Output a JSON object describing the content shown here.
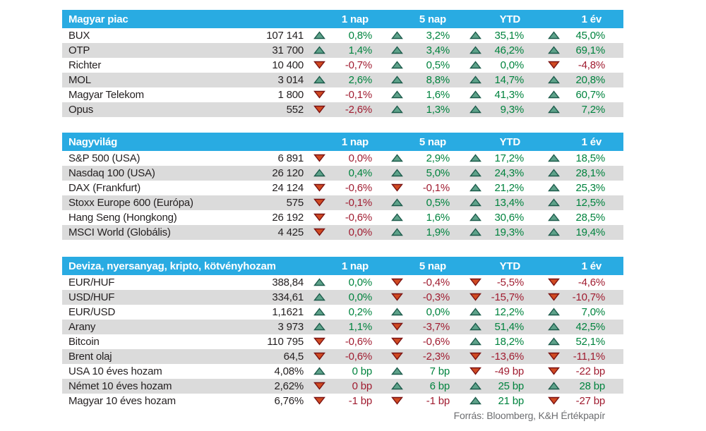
{
  "colors": {
    "header_bg": "#29ABE2",
    "header_text": "#FFFFFF",
    "row_alt_bg": "#DBDBDB",
    "text": "#231F20",
    "positive_text": "#00833E",
    "negative_text": "#A01C30",
    "up_arrow_fill": "#5EA28A",
    "up_arrow_stroke": "#1C5B4B",
    "down_arrow_fill": "#D04A22",
    "down_arrow_stroke": "#7A1212",
    "source_text": "#6D6E71"
  },
  "source_note": "Forrás: Bloomberg, K&H Értékpapír",
  "chart_data": [
    {
      "type": "table",
      "title": "Magyar piac",
      "columns": [
        "1 nap",
        "5 nap",
        "YTD",
        "1 év"
      ],
      "rows": [
        {
          "name": "BUX",
          "value": "107 141",
          "changes": [
            {
              "dir": "up",
              "text": "0,8%"
            },
            {
              "dir": "up",
              "text": "3,2%"
            },
            {
              "dir": "up",
              "text": "35,1%"
            },
            {
              "dir": "up",
              "text": "45,0%"
            }
          ]
        },
        {
          "name": "OTP",
          "value": "31 700",
          "changes": [
            {
              "dir": "up",
              "text": "1,4%"
            },
            {
              "dir": "up",
              "text": "3,4%"
            },
            {
              "dir": "up",
              "text": "46,2%"
            },
            {
              "dir": "up",
              "text": "69,1%"
            }
          ]
        },
        {
          "name": "Richter",
          "value": "10 400",
          "changes": [
            {
              "dir": "down",
              "text": "-0,7%"
            },
            {
              "dir": "up",
              "text": "0,5%"
            },
            {
              "dir": "up",
              "text": "0,0%"
            },
            {
              "dir": "down",
              "text": "-4,8%"
            }
          ]
        },
        {
          "name": "MOL",
          "value": "3 014",
          "changes": [
            {
              "dir": "up",
              "text": "2,6%"
            },
            {
              "dir": "up",
              "text": "8,8%"
            },
            {
              "dir": "up",
              "text": "14,7%"
            },
            {
              "dir": "up",
              "text": "20,8%"
            }
          ]
        },
        {
          "name": "Magyar Telekom",
          "value": "1 800",
          "changes": [
            {
              "dir": "down",
              "text": "-0,1%"
            },
            {
              "dir": "up",
              "text": "1,6%"
            },
            {
              "dir": "up",
              "text": "41,3%"
            },
            {
              "dir": "up",
              "text": "60,7%"
            }
          ]
        },
        {
          "name": "Opus",
          "value": "552",
          "changes": [
            {
              "dir": "down",
              "text": "-2,6%"
            },
            {
              "dir": "up",
              "text": "1,3%"
            },
            {
              "dir": "up",
              "text": "9,3%"
            },
            {
              "dir": "up",
              "text": "7,2%"
            }
          ]
        }
      ]
    },
    {
      "type": "table",
      "title": "Nagyvilág",
      "columns": [
        "1 nap",
        "5 nap",
        "YTD",
        "1 év"
      ],
      "rows": [
        {
          "name": "S&P 500 (USA)",
          "value": "6 891",
          "changes": [
            {
              "dir": "down",
              "text": "0,0%"
            },
            {
              "dir": "up",
              "text": "2,9%"
            },
            {
              "dir": "up",
              "text": "17,2%"
            },
            {
              "dir": "up",
              "text": "18,5%"
            }
          ]
        },
        {
          "name": "Nasdaq 100 (USA)",
          "value": "26 120",
          "changes": [
            {
              "dir": "up",
              "text": "0,4%"
            },
            {
              "dir": "up",
              "text": "5,0%"
            },
            {
              "dir": "up",
              "text": "24,3%"
            },
            {
              "dir": "up",
              "text": "28,1%"
            }
          ]
        },
        {
          "name": "DAX (Frankfurt)",
          "value": "24 124",
          "changes": [
            {
              "dir": "down",
              "text": "-0,6%"
            },
            {
              "dir": "down",
              "text": "-0,1%"
            },
            {
              "dir": "up",
              "text": "21,2%"
            },
            {
              "dir": "up",
              "text": "25,3%"
            }
          ]
        },
        {
          "name": "Stoxx Europe 600 (Európa)",
          "value": "575",
          "changes": [
            {
              "dir": "down",
              "text": "-0,1%"
            },
            {
              "dir": "up",
              "text": "0,5%"
            },
            {
              "dir": "up",
              "text": "13,4%"
            },
            {
              "dir": "up",
              "text": "12,5%"
            }
          ]
        },
        {
          "name": "Hang Seng (Hongkong)",
          "value": "26 192",
          "changes": [
            {
              "dir": "down",
              "text": "-0,6%"
            },
            {
              "dir": "up",
              "text": "1,6%"
            },
            {
              "dir": "up",
              "text": "30,6%"
            },
            {
              "dir": "up",
              "text": "28,5%"
            }
          ]
        },
        {
          "name": "MSCI World (Globális)",
          "value": "4 425",
          "changes": [
            {
              "dir": "down",
              "text": "0,0%"
            },
            {
              "dir": "up",
              "text": "1,9%"
            },
            {
              "dir": "up",
              "text": "19,3%"
            },
            {
              "dir": "up",
              "text": "19,4%"
            }
          ]
        }
      ]
    },
    {
      "type": "table",
      "title": "Deviza, nyersanyag, kripto, kötvényhozam",
      "columns": [
        "1 nap",
        "5 nap",
        "YTD",
        "1 év"
      ],
      "rows": [
        {
          "name": "EUR/HUF",
          "value": "388,84",
          "changes": [
            {
              "dir": "up",
              "text": "0,0%"
            },
            {
              "dir": "down",
              "text": "-0,4%"
            },
            {
              "dir": "down",
              "text": "-5,5%"
            },
            {
              "dir": "down",
              "text": "-4,6%"
            }
          ]
        },
        {
          "name": "USD/HUF",
          "value": "334,61",
          "changes": [
            {
              "dir": "up",
              "text": "0,0%"
            },
            {
              "dir": "down",
              "text": "-0,3%"
            },
            {
              "dir": "down",
              "text": "-15,7%"
            },
            {
              "dir": "down",
              "text": "-10,7%"
            }
          ]
        },
        {
          "name": "EUR/USD",
          "value": "1,1621",
          "changes": [
            {
              "dir": "up",
              "text": "0,2%"
            },
            {
              "dir": "up",
              "text": "0,0%"
            },
            {
              "dir": "up",
              "text": "12,2%"
            },
            {
              "dir": "up",
              "text": "7,0%"
            }
          ]
        },
        {
          "name": "Arany",
          "value": "3 973",
          "changes": [
            {
              "dir": "up",
              "text": "1,1%"
            },
            {
              "dir": "down",
              "text": "-3,7%"
            },
            {
              "dir": "up",
              "text": "51,4%"
            },
            {
              "dir": "up",
              "text": "42,5%"
            }
          ]
        },
        {
          "name": "Bitcoin",
          "value": "110 795",
          "changes": [
            {
              "dir": "down",
              "text": "-0,6%"
            },
            {
              "dir": "down",
              "text": "-0,6%"
            },
            {
              "dir": "up",
              "text": "18,2%"
            },
            {
              "dir": "up",
              "text": "52,1%"
            }
          ]
        },
        {
          "name": "Brent olaj",
          "value": "64,5",
          "changes": [
            {
              "dir": "down",
              "text": "-0,6%"
            },
            {
              "dir": "down",
              "text": "-2,3%"
            },
            {
              "dir": "down",
              "text": "-13,6%"
            },
            {
              "dir": "down",
              "text": "-11,1%"
            }
          ]
        },
        {
          "name": "USA 10 éves hozam",
          "value": "4,08%",
          "changes": [
            {
              "dir": "up",
              "text": "0 bp"
            },
            {
              "dir": "up",
              "text": "7 bp"
            },
            {
              "dir": "down",
              "text": "-49 bp"
            },
            {
              "dir": "down",
              "text": "-22 bp"
            }
          ]
        },
        {
          "name": "Német 10 éves hozam",
          "value": "2,62%",
          "changes": [
            {
              "dir": "down",
              "text": "0 bp"
            },
            {
              "dir": "up",
              "text": "6 bp"
            },
            {
              "dir": "up",
              "text": "25 bp"
            },
            {
              "dir": "up",
              "text": "28 bp"
            }
          ]
        },
        {
          "name": "Magyar 10 éves hozam",
          "value": "6,76%",
          "changes": [
            {
              "dir": "down",
              "text": "-1 bp"
            },
            {
              "dir": "down",
              "text": "-1 bp"
            },
            {
              "dir": "up",
              "text": "21 bp"
            },
            {
              "dir": "down",
              "text": "-27 bp"
            }
          ]
        }
      ]
    }
  ]
}
